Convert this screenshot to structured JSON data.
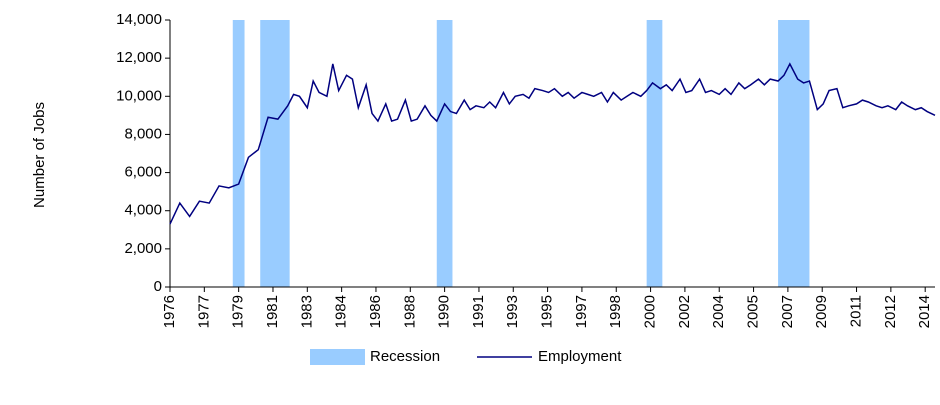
{
  "chart_data": {
    "type": "line",
    "y_label": "Number of Jobs",
    "xlim": [
      1976,
      2015
    ],
    "xticks": [
      {
        "value": 1976,
        "label": "1976"
      },
      {
        "value": 1977.75,
        "label": "1977"
      },
      {
        "value": 1979.5,
        "label": "1979"
      },
      {
        "value": 1981.25,
        "label": "1981"
      },
      {
        "value": 1983,
        "label": "1983"
      },
      {
        "value": 1984.75,
        "label": "1984"
      },
      {
        "value": 1986.5,
        "label": "1986"
      },
      {
        "value": 1988.25,
        "label": "1988"
      },
      {
        "value": 1990,
        "label": "1990"
      },
      {
        "value": 1991.75,
        "label": "1991"
      },
      {
        "value": 1993.5,
        "label": "1993"
      },
      {
        "value": 1995.25,
        "label": "1995"
      },
      {
        "value": 1997,
        "label": "1997"
      },
      {
        "value": 1998.75,
        "label": "1998"
      },
      {
        "value": 2000.5,
        "label": "2000"
      },
      {
        "value": 2002.25,
        "label": "2002"
      },
      {
        "value": 2004,
        "label": "2004"
      },
      {
        "value": 2005.75,
        "label": "2005"
      },
      {
        "value": 2007.5,
        "label": "2007"
      },
      {
        "value": 2009.25,
        "label": "2009"
      },
      {
        "value": 2011,
        "label": "2011"
      },
      {
        "value": 2012.75,
        "label": "2012"
      },
      {
        "value": 2014.5,
        "label": "2014"
      }
    ],
    "ylim": [
      0,
      14000
    ],
    "yticks": [
      0,
      {
        "value": 2000,
        "label": "2,000"
      },
      {
        "value": 4000,
        "label": "4,000"
      },
      {
        "value": 6000,
        "label": "6,000"
      },
      {
        "value": 8000,
        "label": "8,000"
      },
      {
        "value": 10000,
        "label": "10,000"
      },
      {
        "value": 12000,
        "label": "12,000"
      },
      {
        "value": 14000,
        "label": "14,000"
      }
    ],
    "grid": false,
    "legend": "bottom",
    "recession": {
      "name": "Recession",
      "color": "#99ccff",
      "periods": [
        [
          1979.2,
          1979.8
        ],
        [
          1980.6,
          1982.1
        ],
        [
          1989.6,
          1990.4
        ],
        [
          2000.3,
          2001.1
        ],
        [
          2007.0,
          2008.6
        ]
      ]
    },
    "series": [
      {
        "name": "Employment",
        "color": "#000080",
        "x": [
          1976,
          1976.5,
          1977,
          1977.5,
          1978,
          1978.5,
          1979,
          1979.5,
          1980,
          1980.5,
          1981,
          1981.5,
          1982,
          1982.3,
          1982.6,
          1983,
          1983.3,
          1983.6,
          1984,
          1984.3,
          1984.6,
          1985,
          1985.3,
          1985.6,
          1986,
          1986.3,
          1986.6,
          1987,
          1987.3,
          1987.6,
          1988,
          1988.3,
          1988.6,
          1989,
          1989.3,
          1989.6,
          1990,
          1990.3,
          1990.6,
          1991,
          1991.3,
          1991.6,
          1992,
          1992.3,
          1992.6,
          1993,
          1993.3,
          1993.6,
          1994,
          1994.3,
          1994.6,
          1995,
          1995.3,
          1995.6,
          1996,
          1996.3,
          1996.6,
          1997,
          1997.3,
          1997.6,
          1998,
          1998.3,
          1998.6,
          1999,
          1999.3,
          1999.6,
          2000,
          2000.3,
          2000.6,
          2001,
          2001.3,
          2001.6,
          2002,
          2002.3,
          2002.6,
          2003,
          2003.3,
          2003.6,
          2004,
          2004.3,
          2004.6,
          2005,
          2005.3,
          2005.6,
          2006,
          2006.3,
          2006.6,
          2007,
          2007.3,
          2007.6,
          2008,
          2008.3,
          2008.6,
          2009,
          2009.3,
          2009.6,
          2010,
          2010.3,
          2010.6,
          2011,
          2011.3,
          2011.6,
          2012,
          2012.3,
          2012.6,
          2013,
          2013.3,
          2013.6,
          2014,
          2014.3,
          2014.6,
          2015
        ],
        "values": [
          3300,
          4400,
          3700,
          4500,
          4400,
          5300,
          5200,
          5400,
          6800,
          7200,
          8900,
          8800,
          9500,
          10100,
          10000,
          9400,
          10800,
          10200,
          10000,
          11700,
          10300,
          11100,
          10900,
          9400,
          10600,
          9100,
          8700,
          9600,
          8700,
          8800,
          9800,
          8700,
          8800,
          9500,
          9000,
          8700,
          9600,
          9200,
          9100,
          9800,
          9300,
          9500,
          9400,
          9700,
          9400,
          10200,
          9600,
          10000,
          10100,
          9900,
          10400,
          10300,
          10200,
          10400,
          10000,
          10200,
          9900,
          10200,
          10100,
          10000,
          10200,
          9700,
          10200,
          9800,
          10000,
          10200,
          10000,
          10300,
          10700,
          10400,
          10600,
          10300,
          10900,
          10200,
          10300,
          10900,
          10200,
          10300,
          10100,
          10400,
          10100,
          10700,
          10400,
          10600,
          10900,
          10600,
          10900,
          10800,
          11100,
          11700,
          10900,
          10700,
          10800,
          9300,
          9600,
          10300,
          10400,
          9400,
          9500,
          9600,
          9800,
          9700,
          9500,
          9400,
          9500,
          9300,
          9700,
          9500,
          9300,
          9400,
          9200,
          9000
        ]
      }
    ]
  }
}
